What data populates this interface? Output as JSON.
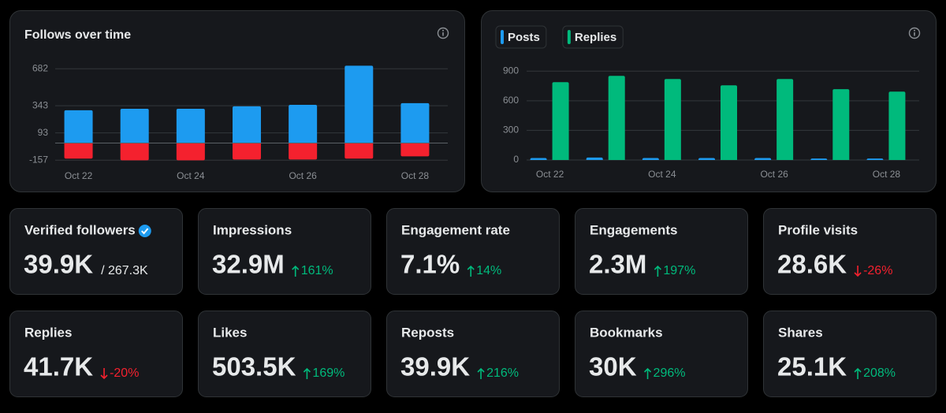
{
  "chart_data": [
    {
      "type": "bar",
      "title": "Follows over time",
      "stacked": true,
      "categories": [
        "Oct 22",
        null,
        "Oct 24",
        null,
        "Oct 26",
        null,
        "Oct 28"
      ],
      "series": [
        {
          "color": "#1d9bf0",
          "values": [
            301,
            315,
            315,
            337,
            351,
            710,
            366
          ]
        },
        {
          "color": "#f4212e",
          "values": [
            -143,
            -158,
            -158,
            -151,
            -151,
            -143,
            -122
          ]
        }
      ],
      "ylim": [
        -170,
        720
      ],
      "yticks": [
        -157,
        93,
        343,
        682
      ],
      "grid": true
    },
    {
      "type": "bar",
      "stacked": false,
      "categories": [
        "Oct 22",
        null,
        "Oct 24",
        null,
        "Oct 26",
        null,
        "Oct 28"
      ],
      "series": [
        {
          "name": "Posts",
          "color": "#1d9bf0",
          "values": [
            20,
            25,
            20,
            20,
            20,
            15,
            15
          ]
        },
        {
          "name": "Replies",
          "color": "#00ba7c",
          "values": [
            788,
            852,
            820,
            756,
            820,
            717,
            693
          ]
        }
      ],
      "ylim": [
        0,
        950
      ],
      "yticks": [
        0,
        300,
        600,
        900
      ],
      "grid": true,
      "legend": "top-left"
    }
  ],
  "cards": [
    {
      "label": "Verified followers",
      "value": "39.9K",
      "total": "/ 267.3K",
      "verified": true
    },
    {
      "label": "Impressions",
      "value": "32.9M",
      "change": "161%",
      "trend": "up"
    },
    {
      "label": "Engagement rate",
      "value": "7.1%",
      "change": "14%",
      "trend": "up"
    },
    {
      "label": "Engagements",
      "value": "2.3M",
      "change": "197%",
      "trend": "up"
    },
    {
      "label": "Profile visits",
      "value": "28.6K",
      "change": "-26%",
      "trend": "down"
    },
    {
      "label": "Replies",
      "value": "41.7K",
      "change": "-20%",
      "trend": "down"
    },
    {
      "label": "Likes",
      "value": "503.5K",
      "change": "169%",
      "trend": "up"
    },
    {
      "label": "Reposts",
      "value": "39.9K",
      "change": "216%",
      "trend": "up"
    },
    {
      "label": "Bookmarks",
      "value": "30K",
      "change": "296%",
      "trend": "up"
    },
    {
      "label": "Shares",
      "value": "25.1K",
      "change": "208%",
      "trend": "up"
    }
  ]
}
